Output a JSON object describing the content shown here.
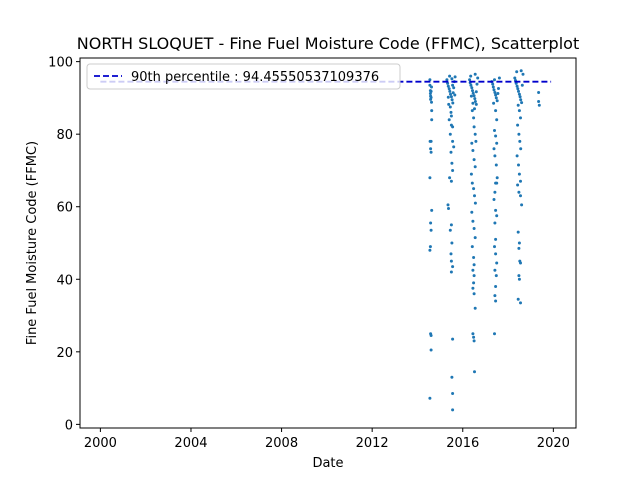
{
  "chart_data": {
    "type": "scatter",
    "title": "NORTH SLOQUET - Fine Fuel Moisture Code (FFMC), Scatterplot",
    "xlabel": "Date",
    "ylabel": "Fine Fuel Moisture Code (FFMC)",
    "xlim": [
      1999.1,
      2021.0
    ],
    "ylim": [
      -1,
      101
    ],
    "xticks": [
      2000,
      2004,
      2008,
      2012,
      2016,
      2020
    ],
    "yticks": [
      0,
      20,
      40,
      60,
      80,
      100
    ],
    "grid": false,
    "legend_position": "top-left",
    "series_color": "#1f77b4",
    "reference_color": "#0000cc",
    "reference_line": {
      "name": "90th percentile : 94.45550537109376",
      "y": 94.45550537109376,
      "x_range": [
        2000.0,
        2019.9
      ],
      "style": "dashed"
    },
    "series": [
      {
        "name": "",
        "points": [
          [
            2014.55,
            95.0
          ],
          [
            2014.55,
            93.5
          ],
          [
            2014.57,
            92.0
          ],
          [
            2014.57,
            91.2
          ],
          [
            2014.58,
            90.5
          ],
          [
            2014.58,
            89.6
          ],
          [
            2014.6,
            91.8
          ],
          [
            2014.6,
            90.1
          ],
          [
            2014.62,
            93.0
          ],
          [
            2014.62,
            88.8
          ],
          [
            2014.63,
            86.5
          ],
          [
            2014.63,
            84.0
          ],
          [
            2014.56,
            78.0
          ],
          [
            2014.6,
            78.0
          ],
          [
            2014.58,
            76.0
          ],
          [
            2014.6,
            75.0
          ],
          [
            2014.55,
            68.0
          ],
          [
            2014.63,
            59.0
          ],
          [
            2014.58,
            55.5
          ],
          [
            2014.6,
            53.5
          ],
          [
            2014.57,
            49.0
          ],
          [
            2014.55,
            48.0
          ],
          [
            2014.58,
            25.0
          ],
          [
            2014.6,
            24.5
          ],
          [
            2014.6,
            20.5
          ],
          [
            2014.55,
            7.2
          ],
          [
            2015.3,
            95.0
          ],
          [
            2015.33,
            94.0
          ],
          [
            2015.36,
            93.2
          ],
          [
            2015.4,
            92.5
          ],
          [
            2015.43,
            91.8
          ],
          [
            2015.46,
            91.0
          ],
          [
            2015.5,
            90.3
          ],
          [
            2015.53,
            89.5
          ],
          [
            2015.56,
            88.6
          ],
          [
            2015.6,
            92.8
          ],
          [
            2015.63,
            94.5
          ],
          [
            2015.66,
            95.8
          ],
          [
            2015.36,
            90.2
          ],
          [
            2015.45,
            87.5
          ],
          [
            2015.5,
            85.0
          ],
          [
            2015.55,
            93.5
          ],
          [
            2015.58,
            91.4
          ],
          [
            2015.65,
            90.8
          ],
          [
            2015.42,
            96.0
          ],
          [
            2015.52,
            95.3
          ],
          [
            2015.38,
            88.2
          ],
          [
            2015.48,
            86.0
          ],
          [
            2015.55,
            82.0
          ],
          [
            2015.4,
            84.0
          ],
          [
            2015.5,
            82.5
          ],
          [
            2015.45,
            80.0
          ],
          [
            2015.55,
            78.0
          ],
          [
            2015.6,
            76.5
          ],
          [
            2015.48,
            75.0
          ],
          [
            2015.52,
            72.0
          ],
          [
            2015.55,
            70.0
          ],
          [
            2015.5,
            67.0
          ],
          [
            2015.42,
            68.0
          ],
          [
            2015.35,
            60.5
          ],
          [
            2015.37,
            59.5
          ],
          [
            2015.5,
            55.0
          ],
          [
            2015.45,
            53.5
          ],
          [
            2015.52,
            50.0
          ],
          [
            2015.48,
            47.0
          ],
          [
            2015.5,
            45.0
          ],
          [
            2015.55,
            43.5
          ],
          [
            2015.5,
            42.0
          ],
          [
            2015.55,
            23.5
          ],
          [
            2015.52,
            13.0
          ],
          [
            2015.55,
            8.5
          ],
          [
            2015.55,
            4.0
          ],
          [
            2016.3,
            95.0
          ],
          [
            2016.33,
            94.2
          ],
          [
            2016.36,
            93.5
          ],
          [
            2016.4,
            92.8
          ],
          [
            2016.43,
            92.0
          ],
          [
            2016.46,
            91.3
          ],
          [
            2016.5,
            90.6
          ],
          [
            2016.53,
            89.8
          ],
          [
            2016.56,
            89.0
          ],
          [
            2016.6,
            88.2
          ],
          [
            2016.63,
            93.8
          ],
          [
            2016.66,
            95.5
          ],
          [
            2016.38,
            90.5
          ],
          [
            2016.45,
            88.5
          ],
          [
            2016.52,
            87.0
          ],
          [
            2016.6,
            91.7
          ],
          [
            2016.35,
            96.0
          ],
          [
            2016.55,
            96.5
          ],
          [
            2016.42,
            86.5
          ],
          [
            2016.48,
            84.5
          ],
          [
            2016.5,
            82.0
          ],
          [
            2016.55,
            80.0
          ],
          [
            2016.58,
            78.0
          ],
          [
            2016.4,
            77.5
          ],
          [
            2016.45,
            75.5
          ],
          [
            2016.5,
            73.0
          ],
          [
            2016.55,
            71.0
          ],
          [
            2016.38,
            69.0
          ],
          [
            2016.42,
            66.5
          ],
          [
            2016.48,
            65.0
          ],
          [
            2016.52,
            63.0
          ],
          [
            2016.56,
            61.0
          ],
          [
            2016.4,
            58.5
          ],
          [
            2016.45,
            56.0
          ],
          [
            2016.5,
            54.0
          ],
          [
            2016.55,
            51.5
          ],
          [
            2016.42,
            49.0
          ],
          [
            2016.48,
            46.0
          ],
          [
            2016.5,
            44.0
          ],
          [
            2016.45,
            42.5
          ],
          [
            2016.5,
            41.0
          ],
          [
            2016.48,
            39.0
          ],
          [
            2016.45,
            37.5
          ],
          [
            2016.5,
            36.0
          ],
          [
            2016.55,
            32.0
          ],
          [
            2016.45,
            25.0
          ],
          [
            2016.48,
            24.0
          ],
          [
            2016.5,
            23.0
          ],
          [
            2016.52,
            14.5
          ],
          [
            2017.28,
            94.5
          ],
          [
            2017.32,
            93.8
          ],
          [
            2017.35,
            93.0
          ],
          [
            2017.38,
            92.2
          ],
          [
            2017.42,
            91.5
          ],
          [
            2017.45,
            90.8
          ],
          [
            2017.48,
            90.0
          ],
          [
            2017.52,
            89.2
          ],
          [
            2017.55,
            91.2
          ],
          [
            2017.58,
            92.6
          ],
          [
            2017.62,
            95.5
          ],
          [
            2017.4,
            95.0
          ],
          [
            2017.36,
            88.5
          ],
          [
            2017.45,
            86.5
          ],
          [
            2017.5,
            84.0
          ],
          [
            2017.4,
            81.0
          ],
          [
            2017.45,
            79.5
          ],
          [
            2017.5,
            77.5
          ],
          [
            2017.38,
            76.0
          ],
          [
            2017.42,
            74.0
          ],
          [
            2017.48,
            71.5
          ],
          [
            2017.52,
            68.0
          ],
          [
            2017.45,
            66.5
          ],
          [
            2017.5,
            66.5
          ],
          [
            2017.42,
            64.0
          ],
          [
            2017.38,
            62.0
          ],
          [
            2017.45,
            59.0
          ],
          [
            2017.5,
            57.5
          ],
          [
            2017.42,
            55.5
          ],
          [
            2017.45,
            51.0
          ],
          [
            2017.4,
            49.0
          ],
          [
            2017.45,
            47.0
          ],
          [
            2017.5,
            44.5
          ],
          [
            2017.42,
            42.5
          ],
          [
            2017.48,
            41.0
          ],
          [
            2017.45,
            38.0
          ],
          [
            2017.42,
            35.5
          ],
          [
            2017.45,
            34.0
          ],
          [
            2017.4,
            25.0
          ],
          [
            2018.3,
            95.5
          ],
          [
            2018.33,
            94.8
          ],
          [
            2018.36,
            94.0
          ],
          [
            2018.4,
            93.2
          ],
          [
            2018.43,
            92.5
          ],
          [
            2018.46,
            91.8
          ],
          [
            2018.5,
            91.0
          ],
          [
            2018.53,
            90.3
          ],
          [
            2018.56,
            89.5
          ],
          [
            2018.6,
            88.7
          ],
          [
            2018.63,
            93.5
          ],
          [
            2018.66,
            96.5
          ],
          [
            2018.38,
            97.2
          ],
          [
            2018.58,
            97.5
          ],
          [
            2018.45,
            88.0
          ],
          [
            2018.5,
            86.5
          ],
          [
            2018.55,
            84.5
          ],
          [
            2018.42,
            82.5
          ],
          [
            2018.48,
            80.0
          ],
          [
            2018.52,
            78.0
          ],
          [
            2018.56,
            76.0
          ],
          [
            2018.4,
            74.0
          ],
          [
            2018.46,
            71.5
          ],
          [
            2018.5,
            69.0
          ],
          [
            2018.55,
            67.0
          ],
          [
            2018.42,
            66.0
          ],
          [
            2018.48,
            64.0
          ],
          [
            2018.55,
            63.0
          ],
          [
            2018.6,
            60.5
          ],
          [
            2018.45,
            53.0
          ],
          [
            2018.5,
            50.0
          ],
          [
            2018.48,
            48.5
          ],
          [
            2018.52,
            45.0
          ],
          [
            2018.55,
            44.5
          ],
          [
            2018.48,
            41.0
          ],
          [
            2018.5,
            40.0
          ],
          [
            2018.45,
            34.5
          ],
          [
            2018.55,
            33.5
          ],
          [
            2019.35,
            91.5
          ],
          [
            2019.35,
            89.0
          ],
          [
            2019.38,
            88.0
          ]
        ]
      }
    ]
  }
}
